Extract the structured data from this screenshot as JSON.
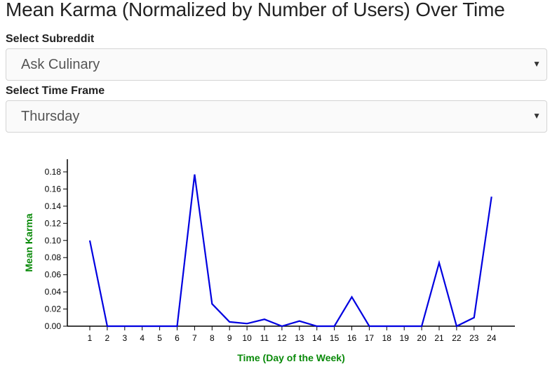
{
  "page": {
    "title": "Mean Karma (Normalized by Number of Users) Over Time"
  },
  "controls": {
    "subreddit": {
      "label": "Select Subreddit",
      "value": "Ask Culinary"
    },
    "timeframe": {
      "label": "Select Time Frame",
      "value": "Thursday"
    }
  },
  "colors": {
    "line": "#0000e0",
    "axis_title": "#0a8a0a",
    "axis": "#000000"
  },
  "chart_data": {
    "type": "line",
    "x": [
      1,
      2,
      3,
      4,
      5,
      6,
      7,
      8,
      9,
      10,
      11,
      12,
      13,
      14,
      15,
      16,
      17,
      18,
      19,
      20,
      21,
      22,
      23,
      24
    ],
    "y": [
      0.1,
      0.0,
      0.0,
      0.0,
      0.0,
      0.0,
      0.177,
      0.026,
      0.005,
      0.003,
      0.008,
      0.0,
      0.006,
      0.0,
      0.0,
      0.034,
      0.0,
      0.0,
      0.0,
      0.0,
      0.074,
      0.0,
      0.01,
      0.151
    ],
    "xlabel": "Time (Day of the Week)",
    "ylabel": "Mean Karma",
    "x_ticks": [
      1,
      2,
      3,
      4,
      5,
      6,
      7,
      8,
      9,
      10,
      11,
      12,
      13,
      14,
      15,
      16,
      17,
      18,
      19,
      20,
      21,
      22,
      23,
      24
    ],
    "y_ticks": [
      "0.00",
      "0.02",
      "0.04",
      "0.06",
      "0.08",
      "0.10",
      "0.12",
      "0.14",
      "0.16",
      "0.18"
    ],
    "ylim": [
      0,
      0.18
    ],
    "grid": false
  }
}
